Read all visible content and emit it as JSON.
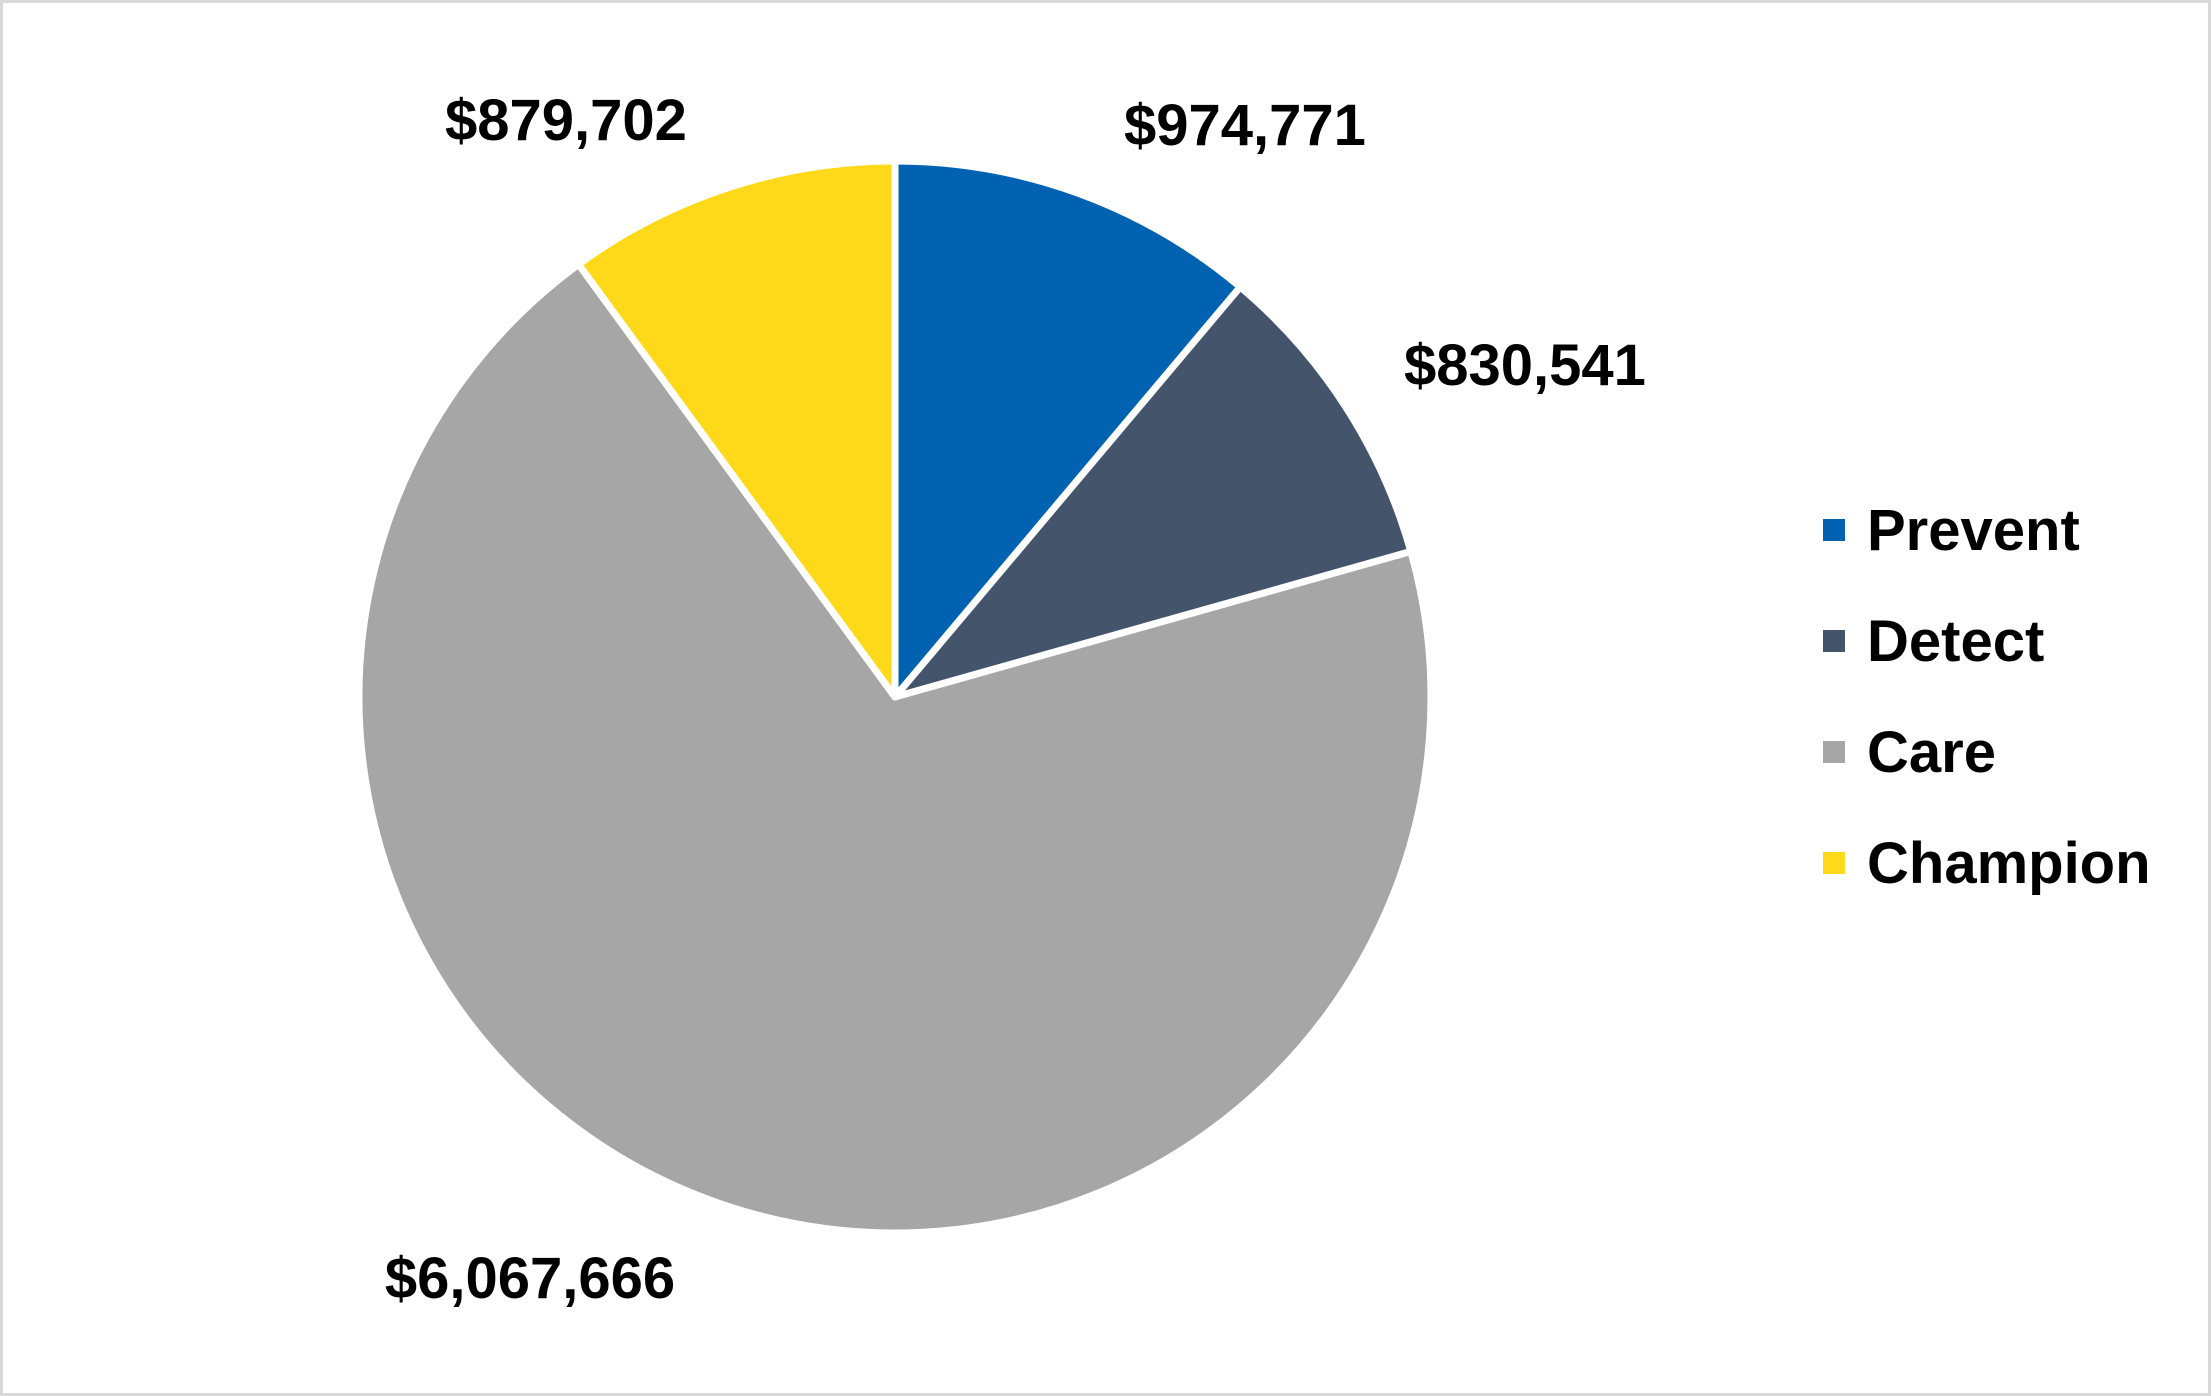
{
  "chart_data": {
    "type": "pie",
    "title": "",
    "start_angle_deg": 0,
    "direction": "clockwise",
    "legend_position": "right",
    "slices": [
      {
        "name": "Prevent",
        "value": 974771,
        "label": "$974,771",
        "color": "#0062b0"
      },
      {
        "name": "Detect",
        "value": 830541,
        "label": "$830,541",
        "color": "#44546a"
      },
      {
        "name": "Care",
        "value": 6067666,
        "label": "$6,067,666",
        "color": "#a6a6a6"
      },
      {
        "name": "Champion",
        "value": 879702,
        "label": "$879,702",
        "color": "#fdd91a"
      }
    ]
  }
}
